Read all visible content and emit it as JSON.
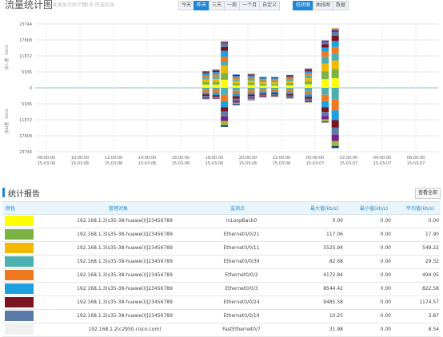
{
  "header": {
    "title": "流量统计图",
    "hints": [
      "此表显示统计数",
      "点击 所选区域"
    ],
    "time_buttons": [
      "今天",
      "昨天",
      "三天",
      "一周",
      "一个月",
      "自定义"
    ],
    "active_time": "昨天",
    "chart_buttons": [
      "柱状图",
      "曲线图",
      "数据"
    ],
    "active_chart": "柱状图"
  },
  "chart_data": {
    "type": "bar",
    "y_ticks": [
      "23744",
      "17808",
      "11872",
      "5936",
      "0",
      "5936",
      "11872",
      "17808",
      "23744"
    ],
    "ylim": [
      -23744,
      23744
    ],
    "ylabel_top": "流入量（kb/s）",
    "ylabel_bottom": "流出量（kb/s）",
    "grid": true,
    "x_ticks": [
      {
        "time": "08:00:00",
        "date": "15-03-06"
      },
      {
        "time": "10:00:00",
        "date": "15-03-06"
      },
      {
        "time": "12:00:00",
        "date": "15-03-06"
      },
      {
        "time": "14:00:00",
        "date": "15-03-06"
      },
      {
        "time": "16:00:00",
        "date": "15-03-06"
      },
      {
        "time": "18:00:00",
        "date": "15-03-06"
      },
      {
        "time": "20:00:00",
        "date": "15-03-06"
      },
      {
        "time": "22:00:00",
        "date": "15-03-06"
      },
      {
        "time": "00:00:00",
        "date": "15-03-07"
      },
      {
        "time": "02:00:00",
        "date": "15-03-07"
      },
      {
        "time": "04:00:00",
        "date": "15-03-07"
      },
      {
        "time": "06:00:00",
        "date": "15-03-07"
      }
    ],
    "series_colors": [
      "#ffff00",
      "#7cb342",
      "#f5b800",
      "#4cb0b0",
      "#f07820",
      "#1e9fe0",
      "#7a1420",
      "#5a7aa8",
      "#7a1e8a",
      "#9fb83a",
      "#1f3f7a",
      "#1f5fa8"
    ],
    "bars": [
      {
        "x": 17.5,
        "up": [
          1200,
          1000,
          900,
          800,
          700,
          800,
          400,
          200,
          200
        ],
        "down": [
          800,
          900,
          700,
          600,
          600,
          500,
          200
        ]
      },
      {
        "x": 18.1,
        "up": [
          1200,
          1000,
          1100,
          900,
          800,
          900,
          500,
          200,
          200
        ],
        "down": [
          900,
          1000,
          800,
          600,
          500,
          300,
          100
        ]
      },
      {
        "x": 18.6,
        "up": [
          3000,
          2500,
          2800,
          1500,
          1800,
          2200,
          1400,
          1200,
          600,
          400
        ],
        "down": [
          2600,
          2400,
          2200,
          1600,
          1800,
          1700,
          1600,
          600
        ]
      },
      {
        "x": 19.3,
        "up": [
          900,
          800,
          800,
          700,
          600,
          600,
          400,
          200
        ],
        "down": [
          1100,
          1000,
          1000,
          900,
          800,
          700,
          500,
          300,
          200
        ]
      },
      {
        "x": 20.2,
        "up": [
          1000,
          900,
          800,
          700,
          600,
          600,
          400,
          200
        ],
        "down": [
          900,
          900,
          700,
          600,
          600,
          400,
          300,
          200
        ]
      },
      {
        "x": 20.9,
        "up": [
          800,
          700,
          600,
          600,
          500,
          400,
          300,
          200
        ],
        "down": [
          800,
          700,
          600,
          500,
          400,
          400,
          200
        ]
      },
      {
        "x": 21.6,
        "up": [
          800,
          700,
          600,
          600,
          500,
          400,
          300,
          200
        ],
        "down": [
          700,
          600,
          600,
          500,
          400,
          400,
          200
        ]
      },
      {
        "x": 22.5,
        "up": [
          900,
          900,
          700,
          600,
          600,
          500,
          400,
          200
        ],
        "down": [
          800,
          800,
          700,
          600,
          500,
          400,
          200
        ]
      },
      {
        "x": 23.6,
        "up": [
          1300,
          1200,
          1100,
          900,
          800,
          800,
          600,
          300,
          200
        ],
        "down": [
          1300,
          1100,
          900,
          800,
          700,
          500,
          200
        ]
      },
      {
        "x": 24.6,
        "up": [
          3200,
          3000,
          2800,
          2600,
          1800,
          1600,
          1200,
          800,
          600
        ],
        "down": [
          2600,
          2400,
          2200,
          1800,
          1500,
          1200,
          800,
          400
        ]
      },
      {
        "x": 25.2,
        "up": [
          3600,
          3400,
          3200,
          2600,
          2400,
          2200,
          2000,
          1400,
          800,
          600
        ],
        "down": [
          4400,
          4000,
          3600,
          2800,
          2600,
          2400,
          1800,
          800
        ]
      }
    ]
  },
  "report": {
    "title": "统计报告",
    "view_all": "查看全部",
    "columns": {
      "color": "颜色",
      "object": "管理对象",
      "interface": "监测点",
      "max": "最大值(kb/s)",
      "min": "最小值(kb/s)",
      "avg": "平均值(kb/s)"
    },
    "rows": [
      {
        "color": "#ffff00",
        "object": "192.168.1.3(s35-38-huawei)||23456789",
        "interface": "InLoopBack0",
        "max": "0.00",
        "min": "0.00",
        "avg": "0.00"
      },
      {
        "color": "#7cb342",
        "object": "192.168.1.3(s35-38-huawei)||23456789",
        "interface": "Ethernet0/0/21",
        "max": "117.06",
        "min": "0.00",
        "avg": "17.90"
      },
      {
        "color": "#f5b800",
        "object": "192.168.1.3(s35-38-huawei)||23456789",
        "interface": "Ethernet0/0/11",
        "max": "5525.94",
        "min": "0.00",
        "avg": "549.22"
      },
      {
        "color": "#4cb0b0",
        "object": "192.168.1.3(s35-38-huawei)||23456789",
        "interface": "Ethernet0/0/39",
        "max": "82.68",
        "min": "0.00",
        "avg": "29.32"
      },
      {
        "color": "#f07820",
        "object": "192.168.1.3(s35-38-huawei)||23456789",
        "interface": "Ethernet0/0/2",
        "max": "4172.84",
        "min": "0.00",
        "avg": "494.05"
      },
      {
        "color": "#1e9fe0",
        "object": "192.168.1.3(s35-38-huawei)||23456789",
        "interface": "Ethernet0/0/3",
        "max": "8544.42",
        "min": "0.00",
        "avg": "822.58"
      },
      {
        "color": "#7a1420",
        "object": "192.168.1.3(s35-38-huawei)||23456789",
        "interface": "Ethernet0/0/24",
        "max": "9485.58",
        "min": "0.00",
        "avg": "1174.57"
      },
      {
        "color": "#5a7aa8",
        "object": "192.168.1.3(s35-38-huawei)||23456789",
        "interface": "Ethernet0/0/19",
        "max": "10.25",
        "min": "0.00",
        "avg": "3.87"
      },
      {
        "color": "#f0f0f0",
        "object": "192.168.1.2(c2950.cisco.com)",
        "interface": "FastEthernet0/7",
        "max": "31.98",
        "min": "0.00",
        "avg": "8.54"
      }
    ]
  }
}
